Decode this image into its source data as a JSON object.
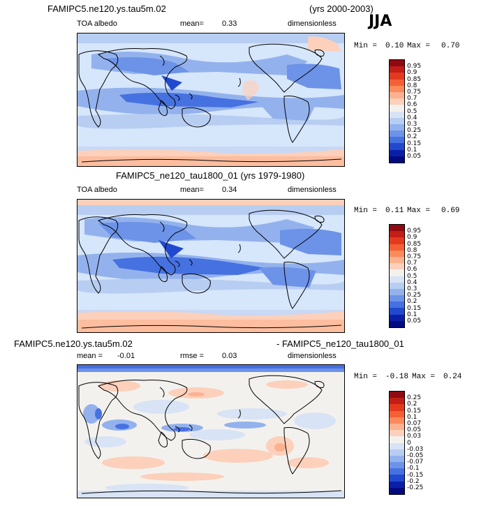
{
  "season": "JJA",
  "panels": [
    {
      "title_left": "FAMIPC5.ne120.ys.tau5m.02",
      "title_right": "(yrs 2000-2003)",
      "var_label": "TOA albedo",
      "stat_label": "mean=",
      "stat_value": "0.33",
      "units": "dimensionless",
      "min_label": "Min =",
      "min_value": "0.10",
      "max_label": "Max =",
      "max_value": "0.70",
      "levels": [
        "0.95",
        "0.9",
        "0.85",
        "0.8",
        "0.75",
        "0.7",
        "0.6",
        "0.5",
        "0.4",
        "0.3",
        "0.25",
        "0.2",
        "0.15",
        "0.1",
        "0.05"
      ],
      "colors": [
        "#8f0a12",
        "#c21d16",
        "#e33a1e",
        "#f46035",
        "#fb8a5c",
        "#fdb18e",
        "#fcd0ba",
        "#f3f1ee",
        "#d8e3f5",
        "#b8cdf2",
        "#93b2ed",
        "#6d93e8",
        "#4671e1",
        "#2148cf",
        "#0b1fa6",
        "#020a80"
      ]
    },
    {
      "title_left": "FAMIPC5_ne120_tau1800_01 (yrs 1979-1980)",
      "var_label": "TOA albedo",
      "stat_label": "mean=",
      "stat_value": "0.34",
      "units": "dimensionless",
      "min_label": "Min =",
      "min_value": "0.11",
      "max_label": "Max =",
      "max_value": "0.69",
      "levels": [
        "0.95",
        "0.9",
        "0.85",
        "0.8",
        "0.75",
        "0.7",
        "0.6",
        "0.5",
        "0.4",
        "0.3",
        "0.25",
        "0.2",
        "0.15",
        "0.1",
        "0.05"
      ],
      "colors": [
        "#8f0a12",
        "#c21d16",
        "#e33a1e",
        "#f46035",
        "#fb8a5c",
        "#fdb18e",
        "#fcd0ba",
        "#f3f1ee",
        "#d8e3f5",
        "#b8cdf2",
        "#93b2ed",
        "#6d93e8",
        "#4671e1",
        "#2148cf",
        "#0b1fa6",
        "#020a80"
      ]
    },
    {
      "title_left": "FAMIPC5.ne120.ys.tau5m.02",
      "title_right": "- FAMIPC5_ne120_tau1800_01",
      "var_label": "mean =",
      "var_value": "-0.01",
      "stat_label": "rmse =",
      "stat_value": "0.03",
      "units": "dimensionless",
      "min_label": "Min =",
      "min_value": "-0.18",
      "max_label": "Max =",
      "max_value": "0.24",
      "levels": [
        "0.25",
        "0.2",
        "0.15",
        "0.1",
        "0.07",
        "0.05",
        "0.03",
        "0",
        "-0.03",
        "-0.05",
        "-0.07",
        "-0.1",
        "-0.15",
        "-0.2",
        "-0.25"
      ],
      "colors": [
        "#8f0a12",
        "#c21d16",
        "#e33a1e",
        "#f46035",
        "#fb8a5c",
        "#fdb18e",
        "#fcd0ba",
        "#f3f1ee",
        "#d8e3f5",
        "#b8cdf2",
        "#93b2ed",
        "#6d93e8",
        "#4671e1",
        "#2148cf",
        "#0b1fa6",
        "#020a80"
      ]
    }
  ],
  "chart_data": [
    {
      "type": "heatmap",
      "title": "FAMIPC5.ne120.ys.tau5m.02 (yrs 2000-2003)",
      "variable": "TOA albedo",
      "mean": 0.33,
      "min": 0.1,
      "max": 0.7,
      "units": "dimensionless"
    },
    {
      "type": "heatmap",
      "title": "FAMIPC5_ne120_tau1800_01 (yrs 1979-1980)",
      "variable": "TOA albedo",
      "mean": 0.34,
      "min": 0.11,
      "max": 0.69,
      "units": "dimensionless"
    },
    {
      "type": "heatmap",
      "title": "FAMIPC5.ne120.ys.tau5m.02 - FAMIPC5_ne120_tau1800_01",
      "mean": -0.01,
      "rmse": 0.03,
      "min": -0.18,
      "max": 0.24,
      "units": "dimensionless"
    }
  ]
}
